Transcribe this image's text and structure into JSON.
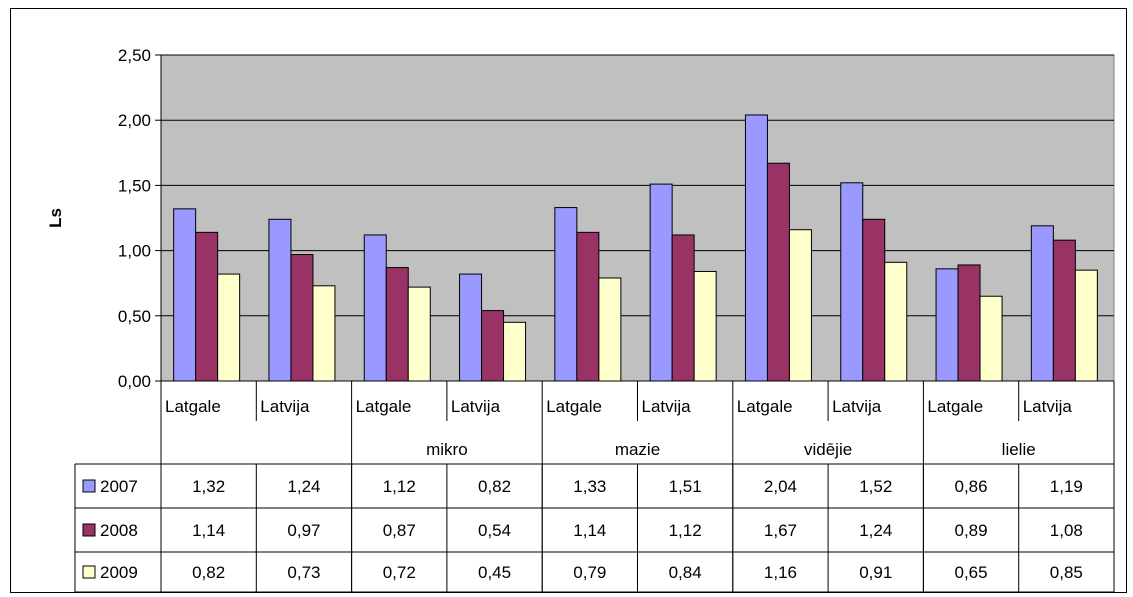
{
  "chart_data": {
    "type": "bar",
    "ylabel": "Ls",
    "ylim": [
      0,
      2.5
    ],
    "yticks": [
      "0,00",
      "0,50",
      "1,00",
      "1,50",
      "2,00",
      "2,50"
    ],
    "grid": true,
    "legend": "data-table",
    "groups": [
      "",
      "mikro",
      "mazie",
      "vidējie",
      "lielie"
    ],
    "categories": [
      "Latgale",
      "Latvija",
      "Latgale",
      "Latvija",
      "Latgale",
      "Latvija",
      "Latgale",
      "Latvija",
      "Latgale",
      "Latvija"
    ],
    "series": [
      {
        "name": "2007",
        "color": "#9999ff",
        "values": [
          1.32,
          1.24,
          1.12,
          0.82,
          1.33,
          1.51,
          2.04,
          1.52,
          0.86,
          1.19
        ],
        "labels": [
          "1,32",
          "1,24",
          "1,12",
          "0,82",
          "1,33",
          "1,51",
          "2,04",
          "1,52",
          "0,86",
          "1,19"
        ]
      },
      {
        "name": "2008",
        "color": "#993366",
        "values": [
          1.14,
          0.97,
          0.87,
          0.54,
          1.14,
          1.12,
          1.67,
          1.24,
          0.89,
          1.08
        ],
        "labels": [
          "1,14",
          "0,97",
          "0,87",
          "0,54",
          "1,14",
          "1,12",
          "1,67",
          "1,24",
          "0,89",
          "1,08"
        ]
      },
      {
        "name": "2009",
        "color": "#ffffcc",
        "values": [
          0.82,
          0.73,
          0.72,
          0.45,
          0.79,
          0.84,
          1.16,
          0.91,
          0.65,
          0.85
        ],
        "labels": [
          "0,82",
          "0,73",
          "0,72",
          "0,45",
          "0,79",
          "0,84",
          "1,16",
          "0,91",
          "0,65",
          "0,85"
        ]
      }
    ],
    "plot_background": "#c0c0c0"
  }
}
